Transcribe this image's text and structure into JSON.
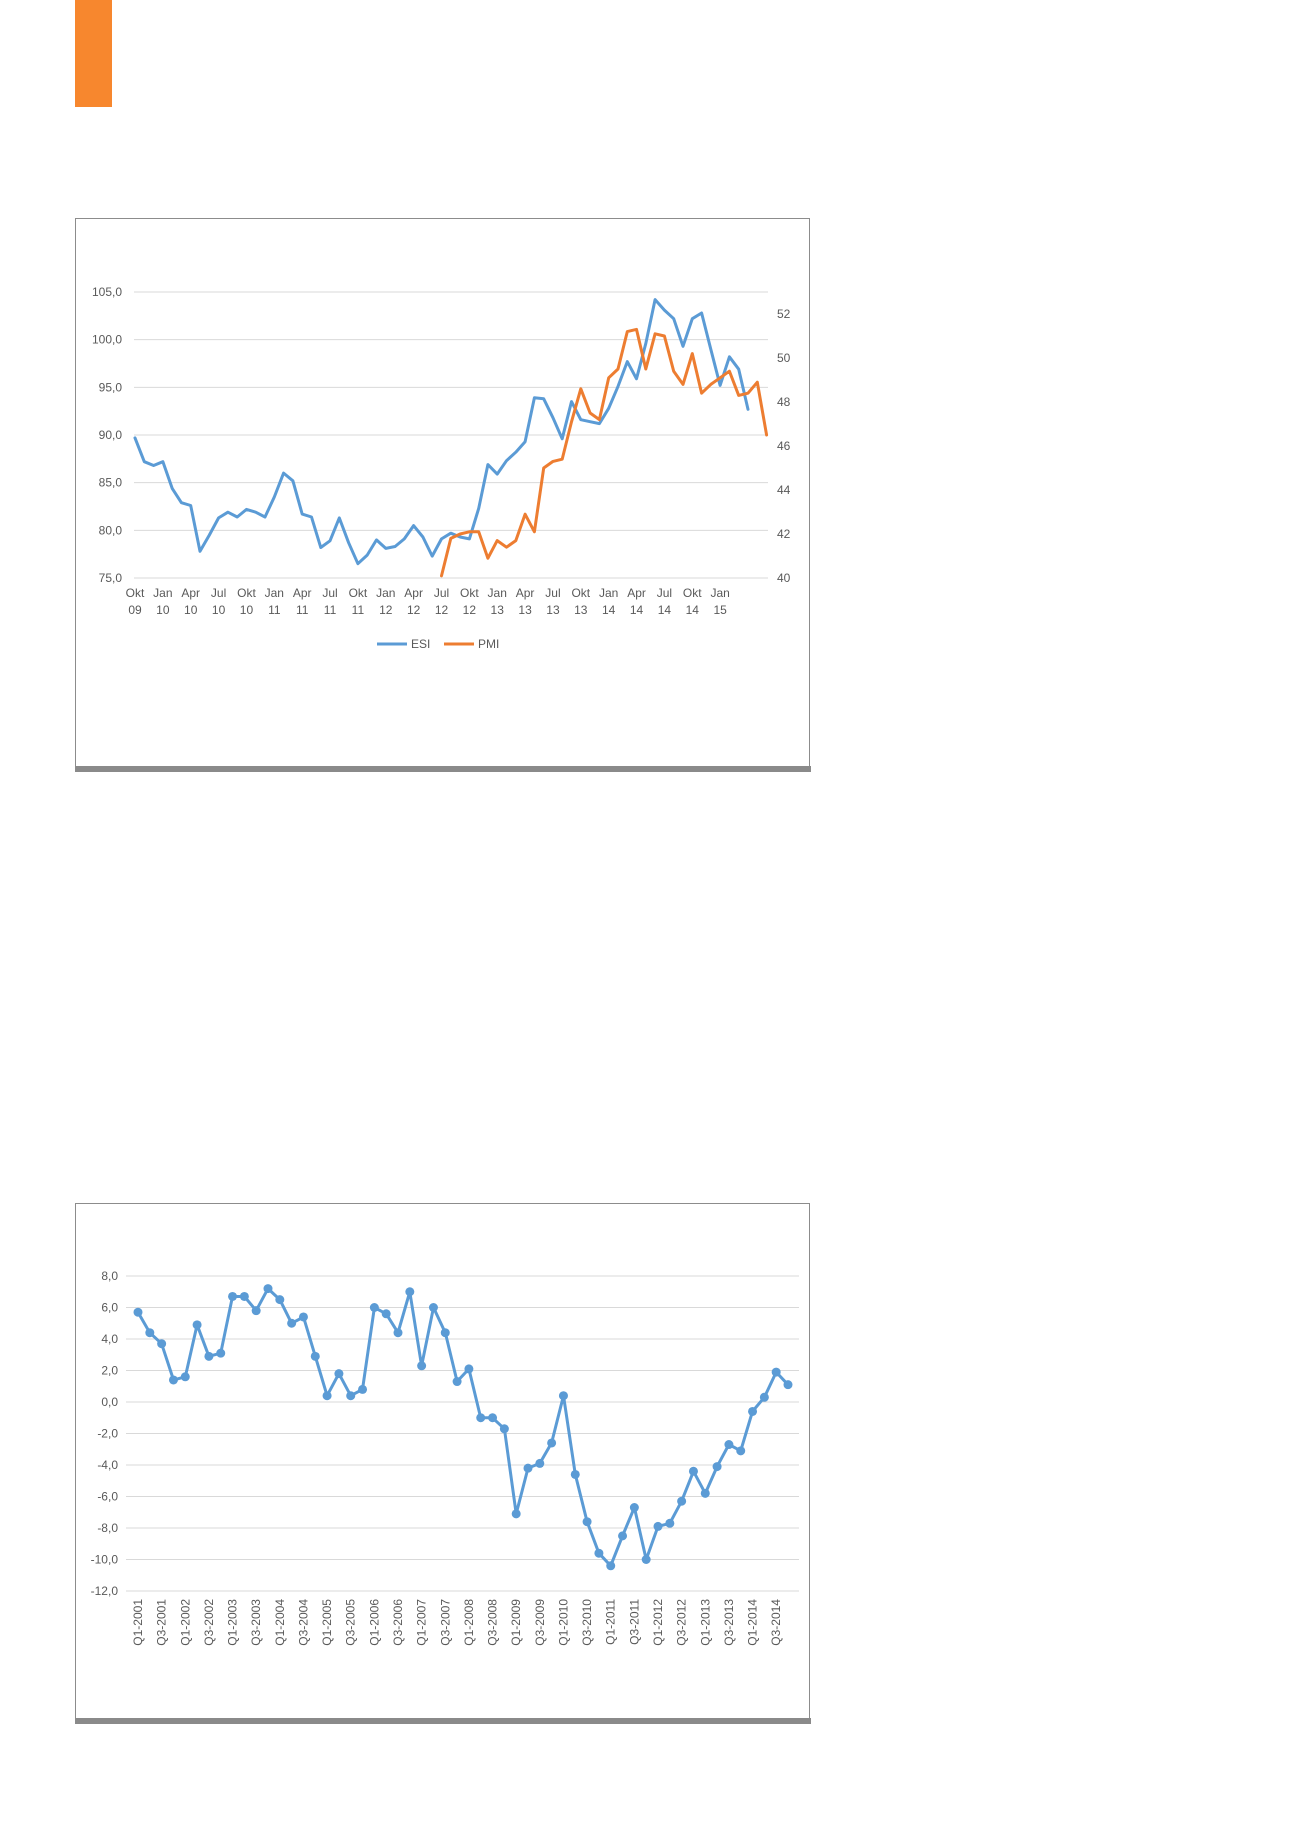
{
  "colors": {
    "accent": "#F7872E",
    "esi": "#5B9BD5",
    "pmi": "#ED7D31",
    "grid": "#d9d9d9",
    "text": "#595959"
  },
  "chart_data": [
    {
      "type": "line",
      "title": "",
      "x_labels": [
        [
          "Okt",
          "09"
        ],
        [
          "Jan",
          "10"
        ],
        [
          "Apr",
          "10"
        ],
        [
          "Jul",
          "10"
        ],
        [
          "Okt",
          "10"
        ],
        [
          "Jan",
          "11"
        ],
        [
          "Apr",
          "11"
        ],
        [
          "Jul",
          "11"
        ],
        [
          "Okt",
          "11"
        ],
        [
          "Jan",
          "12"
        ],
        [
          "Apr",
          "12"
        ],
        [
          "Jul",
          "12"
        ],
        [
          "Okt",
          "12"
        ],
        [
          "Jan",
          "13"
        ],
        [
          "Apr",
          "13"
        ],
        [
          "Jul",
          "13"
        ],
        [
          "Okt",
          "13"
        ],
        [
          "Jan",
          "14"
        ],
        [
          "Apr",
          "14"
        ],
        [
          "Jul",
          "14"
        ],
        [
          "Okt",
          "14"
        ],
        [
          "Jan",
          "15"
        ]
      ],
      "y_left": {
        "min": 75,
        "max": 105,
        "ticks": [
          "75,0",
          "80,0",
          "85,0",
          "90,0",
          "95,0",
          "100,0",
          "105,0"
        ]
      },
      "y_right": {
        "min": 40,
        "max": 53,
        "ticks": [
          "40",
          "42",
          "44",
          "46",
          "48",
          "50",
          "52"
        ]
      },
      "grid": true,
      "legend": [
        "ESI",
        "PMI"
      ],
      "legend_position": "bottom",
      "series": [
        {
          "name": "ESI",
          "axis": "left",
          "start_index": 0,
          "values": [
            89.7,
            87.2,
            86.8,
            87.2,
            84.4,
            82.9,
            82.6,
            77.8,
            79.5,
            81.3,
            81.9,
            81.4,
            82.2,
            81.9,
            81.4,
            83.5,
            86.0,
            85.2,
            81.7,
            81.4,
            78.2,
            78.9,
            81.3,
            78.7,
            76.5,
            77.4,
            79.0,
            78.1,
            78.3,
            79.1,
            80.5,
            79.3,
            77.3,
            79.1,
            79.7,
            79.3,
            79.1,
            82.3,
            86.9,
            85.9,
            87.3,
            88.2,
            89.3,
            93.9,
            93.8,
            91.8,
            89.6,
            93.5,
            91.6,
            91.4,
            91.2,
            92.8,
            95.1,
            97.7,
            95.9,
            99.6,
            104.2,
            103.1,
            102.2,
            99.3,
            102.2,
            102.8,
            99.0,
            95.2,
            98.2,
            96.9,
            92.7
          ]
        },
        {
          "name": "PMI",
          "axis": "right",
          "start_index": 33,
          "values": [
            40.1,
            41.8,
            42.0,
            42.1,
            42.1,
            40.9,
            41.7,
            41.4,
            41.7,
            42.9,
            42.1,
            45.0,
            45.3,
            45.4,
            47.1,
            48.6,
            47.5,
            47.2,
            49.1,
            49.5,
            51.2,
            51.3,
            49.5,
            51.1,
            51.0,
            49.4,
            48.8,
            50.2,
            48.4,
            48.8,
            49.1,
            49.4,
            48.3,
            48.4,
            48.9,
            46.5
          ]
        }
      ]
    },
    {
      "type": "line",
      "title": "",
      "categories": [
        "Q1-2001",
        "Q2-2001",
        "Q3-2001",
        "Q4-2001",
        "Q1-2002",
        "Q2-2002",
        "Q3-2002",
        "Q4-2002",
        "Q1-2003",
        "Q2-2003",
        "Q3-2003",
        "Q4-2003",
        "Q1-2004",
        "Q2-2004",
        "Q3-2004",
        "Q4-2004",
        "Q1-2005",
        "Q2-2005",
        "Q3-2005",
        "Q4-2005",
        "Q1-2006",
        "Q2-2006",
        "Q3-2006",
        "Q4-2006",
        "Q1-2007",
        "Q2-2007",
        "Q3-2007",
        "Q4-2007",
        "Q1-2008",
        "Q2-2008",
        "Q3-2008",
        "Q4-2008",
        "Q1-2009",
        "Q2-2009",
        "Q3-2009",
        "Q4-2009",
        "Q1-2010",
        "Q2-2010",
        "Q3-2010",
        "Q4-2010",
        "Q1-2011",
        "Q2-2011",
        "Q3-2011",
        "Q4-2011",
        "Q1-2012",
        "Q2-2012",
        "Q3-2012",
        "Q4-2012",
        "Q1-2013",
        "Q2-2013",
        "Q3-2013",
        "Q4-2013",
        "Q1-2014",
        "Q2-2014",
        "Q3-2014",
        "Q4-2014"
      ],
      "tick_labels": [
        "Q1-2001",
        "Q3-2001",
        "Q1-2002",
        "Q3-2002",
        "Q1-2003",
        "Q3-2003",
        "Q1-2004",
        "Q3-2004",
        "Q1-2005",
        "Q3-2005",
        "Q1-2006",
        "Q3-2006",
        "Q1-2007",
        "Q3-2007",
        "Q1-2008",
        "Q3-2008",
        "Q1-2009",
        "Q3-2009",
        "Q1-2010",
        "Q3-2010",
        "Q1-2011",
        "Q3-2011",
        "Q1-2012",
        "Q3-2012",
        "Q1-2013",
        "Q3-2013",
        "Q1-2014",
        "Q3-2014"
      ],
      "y_axis": {
        "min": -12,
        "max": 8,
        "ticks": [
          "-12,0",
          "-10,0",
          "-8,0",
          "-6,0",
          "-4,0",
          "-2,0",
          "0,0",
          "2,0",
          "4,0",
          "6,0",
          "8,0"
        ]
      },
      "grid": true,
      "series": [
        {
          "values": [
            5.7,
            4.4,
            3.7,
            1.4,
            1.6,
            4.9,
            2.9,
            3.1,
            6.7,
            6.7,
            5.8,
            7.2,
            6.5,
            5.0,
            5.4,
            2.9,
            0.4,
            1.8,
            0.4,
            0.8,
            6.0,
            5.6,
            4.4,
            7.0,
            2.3,
            6.0,
            4.4,
            1.3,
            2.1,
            -1.0,
            -1.0,
            -1.7,
            -7.1,
            -4.2,
            -3.9,
            -2.6,
            0.4,
            -4.6,
            -7.6,
            -9.6,
            -10.4,
            -8.5,
            -6.7,
            -10.0,
            -7.9,
            -7.7,
            -6.3,
            -4.4,
            -5.8,
            -4.1,
            -2.7,
            -3.1,
            -0.6,
            0.3,
            1.9,
            1.1
          ]
        }
      ]
    }
  ]
}
